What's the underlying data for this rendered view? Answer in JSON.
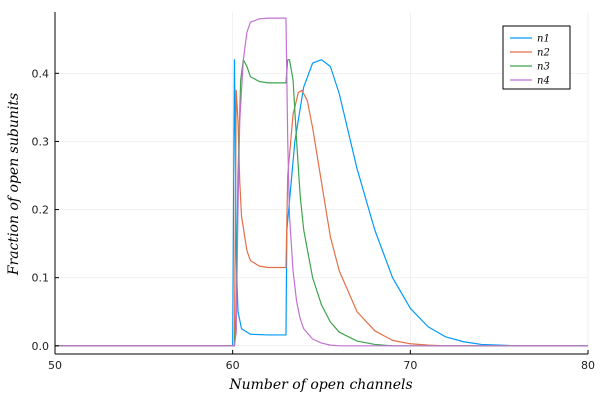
{
  "chart_data": {
    "type": "line",
    "title": "",
    "xlabel": "Number of open channels",
    "ylabel": "Fraction of open subunits",
    "xlim": [
      50,
      80
    ],
    "ylim": [
      -0.012,
      0.49
    ],
    "xticks": [
      50,
      60,
      70,
      80
    ],
    "yticks": [
      0.0,
      0.1,
      0.2,
      0.3,
      0.4
    ],
    "xtick_labels": [
      "50",
      "60",
      "70",
      "80"
    ],
    "ytick_labels": [
      "0.0",
      "0.1",
      "0.2",
      "0.3",
      "0.4"
    ],
    "grid": true,
    "legend_position": "top-right",
    "series": [
      {
        "name": "n1",
        "color": "#009AFA",
        "x": [
          50,
          60.0,
          60.1,
          60.15,
          60.2,
          60.3,
          60.5,
          61.0,
          62.0,
          63.0,
          63.05,
          63.5,
          64.0,
          64.5,
          65.0,
          65.5,
          66.0,
          67.0,
          68.0,
          69.0,
          70.0,
          71.0,
          72.0,
          73.0,
          74.0,
          76.0,
          80
        ],
        "values": [
          0.0,
          0.0,
          0.42,
          0.3,
          0.13,
          0.05,
          0.025,
          0.017,
          0.016,
          0.016,
          0.17,
          0.3,
          0.38,
          0.415,
          0.42,
          0.41,
          0.37,
          0.26,
          0.17,
          0.1,
          0.055,
          0.028,
          0.013,
          0.006,
          0.002,
          0.0,
          0.0
        ]
      },
      {
        "name": "n2",
        "color": "#E36F47",
        "x": [
          50,
          60.1,
          60.2,
          60.3,
          60.4,
          60.5,
          60.8,
          61.0,
          61.5,
          62.0,
          62.5,
          63.0,
          63.1,
          63.4,
          63.7,
          63.9,
          64.2,
          64.5,
          65.0,
          65.5,
          66.0,
          67.0,
          68.0,
          69.0,
          70.0,
          71.0,
          72.0,
          80
        ],
        "values": [
          0.0,
          0.0,
          0.375,
          0.33,
          0.24,
          0.19,
          0.14,
          0.125,
          0.117,
          0.115,
          0.115,
          0.115,
          0.25,
          0.34,
          0.372,
          0.375,
          0.36,
          0.32,
          0.24,
          0.16,
          0.11,
          0.05,
          0.022,
          0.008,
          0.003,
          0.001,
          0.0,
          0.0
        ]
      },
      {
        "name": "n3",
        "color": "#3EA44E",
        "x": [
          50,
          60.1,
          60.2,
          60.3,
          60.45,
          60.6,
          60.8,
          61.0,
          61.5,
          62.0,
          62.5,
          63.0,
          63.1,
          63.2,
          63.4,
          63.6,
          63.8,
          64.0,
          64.5,
          65.0,
          65.5,
          66.0,
          67.0,
          68.0,
          69.0,
          70.0,
          80
        ],
        "values": [
          0.0,
          0.0,
          0.05,
          0.25,
          0.39,
          0.42,
          0.41,
          0.395,
          0.388,
          0.386,
          0.386,
          0.386,
          0.42,
          0.42,
          0.39,
          0.3,
          0.22,
          0.17,
          0.1,
          0.06,
          0.035,
          0.02,
          0.007,
          0.002,
          0.0,
          0.0,
          0.0
        ]
      },
      {
        "name": "n4",
        "color": "#C271D2",
        "x": [
          50,
          60.1,
          60.2,
          60.3,
          60.4,
          60.6,
          60.8,
          61.0,
          61.5,
          62.0,
          62.5,
          63.0,
          63.1,
          63.2,
          63.4,
          63.6,
          63.8,
          64.0,
          64.5,
          65.0,
          65.5,
          66.0,
          67.0,
          80
        ],
        "values": [
          0.0,
          0.0,
          0.02,
          0.2,
          0.33,
          0.42,
          0.46,
          0.475,
          0.48,
          0.481,
          0.481,
          0.481,
          0.3,
          0.19,
          0.11,
          0.065,
          0.04,
          0.025,
          0.01,
          0.004,
          0.001,
          0.0,
          0.0,
          0.0
        ]
      }
    ]
  }
}
